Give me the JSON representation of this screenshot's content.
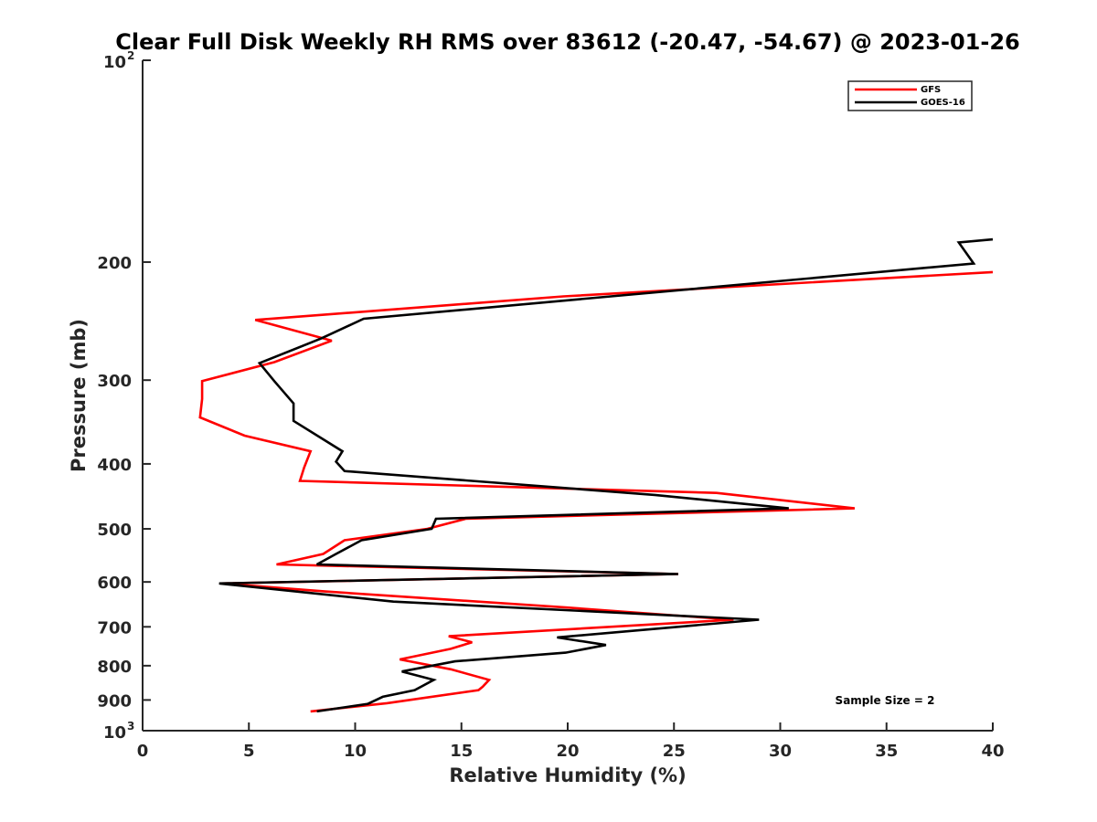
{
  "chart_data": {
    "type": "line",
    "title": "Clear Full Disk Weekly RH RMS over 83612 (-20.47, -54.67) @ 2023-01-26",
    "xlabel": "Relative Humidity (%)",
    "ylabel": "Pressure (mb)",
    "xlim": [
      0,
      40
    ],
    "ylim": [
      1000,
      100
    ],
    "yscale": "log",
    "x_ticks": [
      "0",
      "5",
      "10",
      "15",
      "20",
      "25",
      "30",
      "35",
      "40"
    ],
    "y_ticks": [
      "200",
      "300",
      "400",
      "500",
      "600",
      "700",
      "800",
      "900"
    ],
    "y_ticks_pow": [
      {
        "base": "10",
        "exp": "2"
      },
      {
        "base": "10",
        "exp": "3"
      }
    ],
    "grid": false,
    "legend_position": "top-right",
    "annotation": "Sample Size = 2",
    "series": [
      {
        "name": "GFS",
        "color": "#ff0000",
        "points": [
          [
            40.0,
            207
          ],
          [
            19.8,
            225
          ],
          [
            5.3,
            244
          ],
          [
            8.9,
            262
          ],
          [
            6.2,
            282
          ],
          [
            2.8,
            301
          ],
          [
            2.8,
            320
          ],
          [
            2.7,
            341
          ],
          [
            4.8,
            363
          ],
          [
            7.9,
            383
          ],
          [
            7.6,
            405
          ],
          [
            7.4,
            424
          ],
          [
            27.0,
            442
          ],
          [
            33.5,
            466
          ],
          [
            15.2,
            483
          ],
          [
            13.4,
            500
          ],
          [
            9.5,
            520
          ],
          [
            8.5,
            545
          ],
          [
            6.3,
            565
          ],
          [
            25.2,
            584
          ],
          [
            3.7,
            603
          ],
          [
            8.6,
            620
          ],
          [
            19.9,
            655
          ],
          [
            27.8,
            683
          ],
          [
            14.4,
            723
          ],
          [
            15.5,
            738
          ],
          [
            14.5,
            755
          ],
          [
            12.1,
            783
          ],
          [
            14.5,
            810
          ],
          [
            16.3,
            840
          ],
          [
            16.0,
            860
          ],
          [
            15.8,
            870
          ],
          [
            11.5,
            910
          ],
          [
            7.9,
            936
          ]
        ]
      },
      {
        "name": "GOES-16",
        "color": "#000000",
        "points": [
          [
            40.0,
            185
          ],
          [
            38.4,
            187
          ],
          [
            39.1,
            201
          ],
          [
            10.4,
            243
          ],
          [
            8.4,
            260
          ],
          [
            5.5,
            283
          ],
          [
            6.2,
            301
          ],
          [
            7.1,
            325
          ],
          [
            7.1,
            345
          ],
          [
            9.4,
            383
          ],
          [
            9.1,
            397
          ],
          [
            9.5,
            410
          ],
          [
            24.1,
            445
          ],
          [
            30.4,
            466
          ],
          [
            13.8,
            483
          ],
          [
            13.6,
            500
          ],
          [
            10.3,
            520
          ],
          [
            9.1,
            545
          ],
          [
            8.2,
            565
          ],
          [
            25.2,
            584
          ],
          [
            3.6,
            603
          ],
          [
            11.8,
            642
          ],
          [
            29.0,
            683
          ],
          [
            19.5,
            726
          ],
          [
            21.8,
            745
          ],
          [
            19.9,
            765
          ],
          [
            14.7,
            788
          ],
          [
            12.2,
            816
          ],
          [
            13.7,
            840
          ],
          [
            12.8,
            870
          ],
          [
            11.3,
            890
          ],
          [
            10.6,
            912
          ],
          [
            8.2,
            936
          ]
        ]
      }
    ]
  }
}
